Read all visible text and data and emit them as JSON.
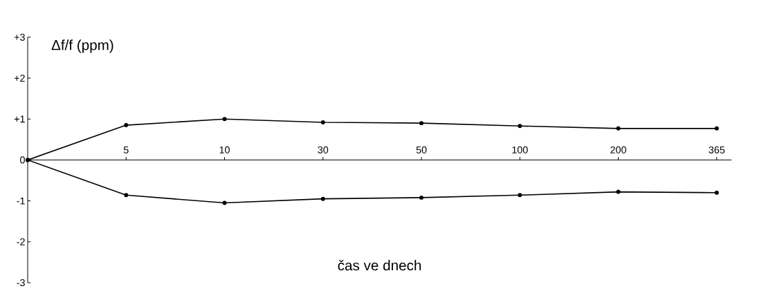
{
  "chart_data": {
    "type": "line",
    "ylabel": "Δf/f (ppm)",
    "xlabel": "čas ve dnech",
    "categories": [
      null,
      "5",
      "10",
      "30",
      "50",
      "100",
      "200",
      "365"
    ],
    "series": [
      {
        "color": "#000000",
        "values": [
          0,
          0.85,
          1.0,
          0.92,
          0.9,
          0.83,
          0.77,
          0.77
        ]
      },
      {
        "color": "#000000",
        "values": [
          0,
          -0.86,
          -1.05,
          -0.95,
          -0.92,
          -0.86,
          -0.78,
          -0.8
        ]
      }
    ],
    "ylim": [
      -3,
      3
    ],
    "yticks": [
      {
        "value": 3,
        "label": "+3"
      },
      {
        "value": 2,
        "label": "+2"
      },
      {
        "value": 1,
        "label": "+1"
      },
      0,
      -1,
      -2,
      -3
    ],
    "marker": "circle",
    "line_style": "solid"
  }
}
